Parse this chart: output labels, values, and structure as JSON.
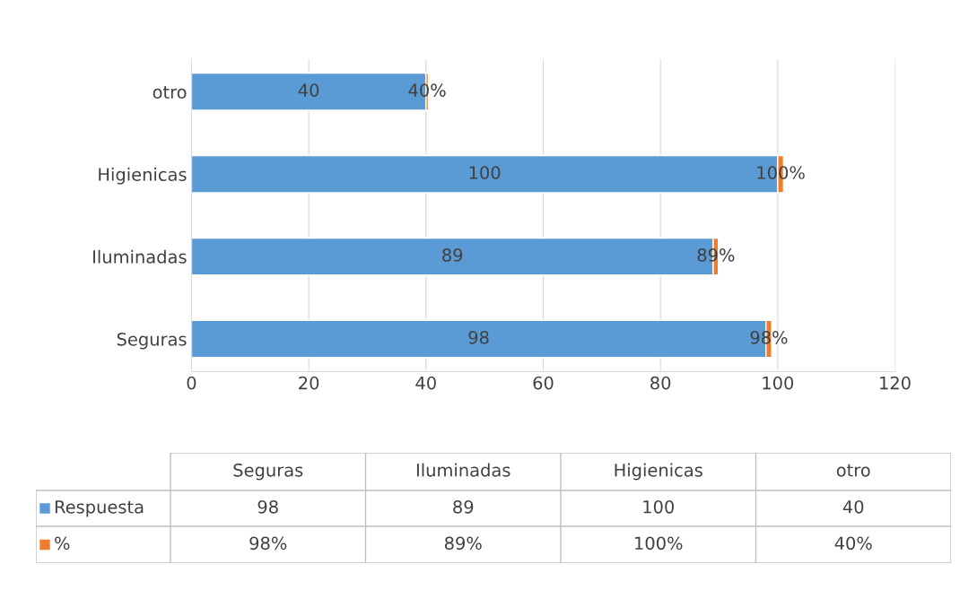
{
  "chart_data": {
    "type": "bar",
    "orientation": "horizontal",
    "stacked": true,
    "categories": [
      "otro",
      "Higienicas",
      "Iluminadas",
      "Seguras"
    ],
    "series": [
      {
        "name": "Respuesta",
        "color": "#5b9bd5",
        "values": [
          40,
          100,
          89,
          98
        ],
        "value_labels": [
          "40",
          "100",
          "89",
          "98"
        ]
      },
      {
        "name": "%",
        "color": "#ed7d31",
        "values": [
          0.4,
          1,
          0.89,
          0.98
        ],
        "value_labels": [
          "40%",
          "100%",
          "89%",
          "98%"
        ]
      }
    ],
    "xlim": [
      0,
      120
    ],
    "xticks": [
      0,
      20,
      40,
      60,
      80,
      100,
      120
    ],
    "grid": "x",
    "legend": "bottom"
  }
}
